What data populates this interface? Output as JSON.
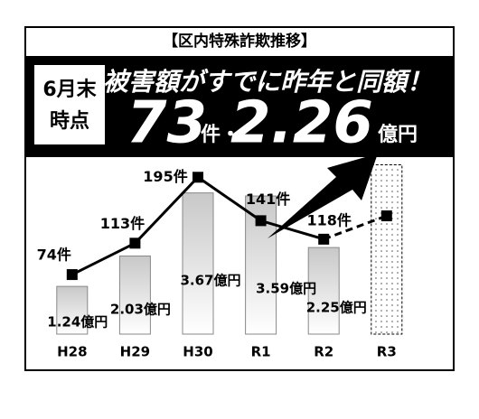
{
  "header": {
    "title": "【区内特殊詐欺推移】",
    "badge_line1": "6月末",
    "badge_line2": "時点",
    "headline": "被害額がすでに昨年と同額！",
    "count": "73",
    "count_unit": "件・",
    "amount": "2.26",
    "amount_unit": "億円"
  },
  "chart_data": {
    "type": "combo",
    "categories": [
      "H28",
      "H29",
      "H30",
      "R1",
      "R2",
      "R3"
    ],
    "ylim": [
      0,
      4.6
    ],
    "y2lim": [
      0,
      220
    ],
    "projected_last": true,
    "series": [
      {
        "type": "bar",
        "color": "#d9d9d9",
        "values": [
          1.24,
          2.03,
          3.67,
          3.59,
          2.25,
          4.4
        ],
        "value_labels": [
          "1.24億円",
          "2.03億円",
          "3.67億円",
          "3.59億円",
          "2.25億円",
          null
        ]
      },
      {
        "type": "line",
        "axis": "y2",
        "color": "#000000",
        "values": [
          74,
          113,
          195,
          141,
          118,
          147
        ],
        "value_labels": [
          "74件",
          "113件",
          "195件",
          "141件",
          "118件",
          null
        ]
      }
    ]
  }
}
